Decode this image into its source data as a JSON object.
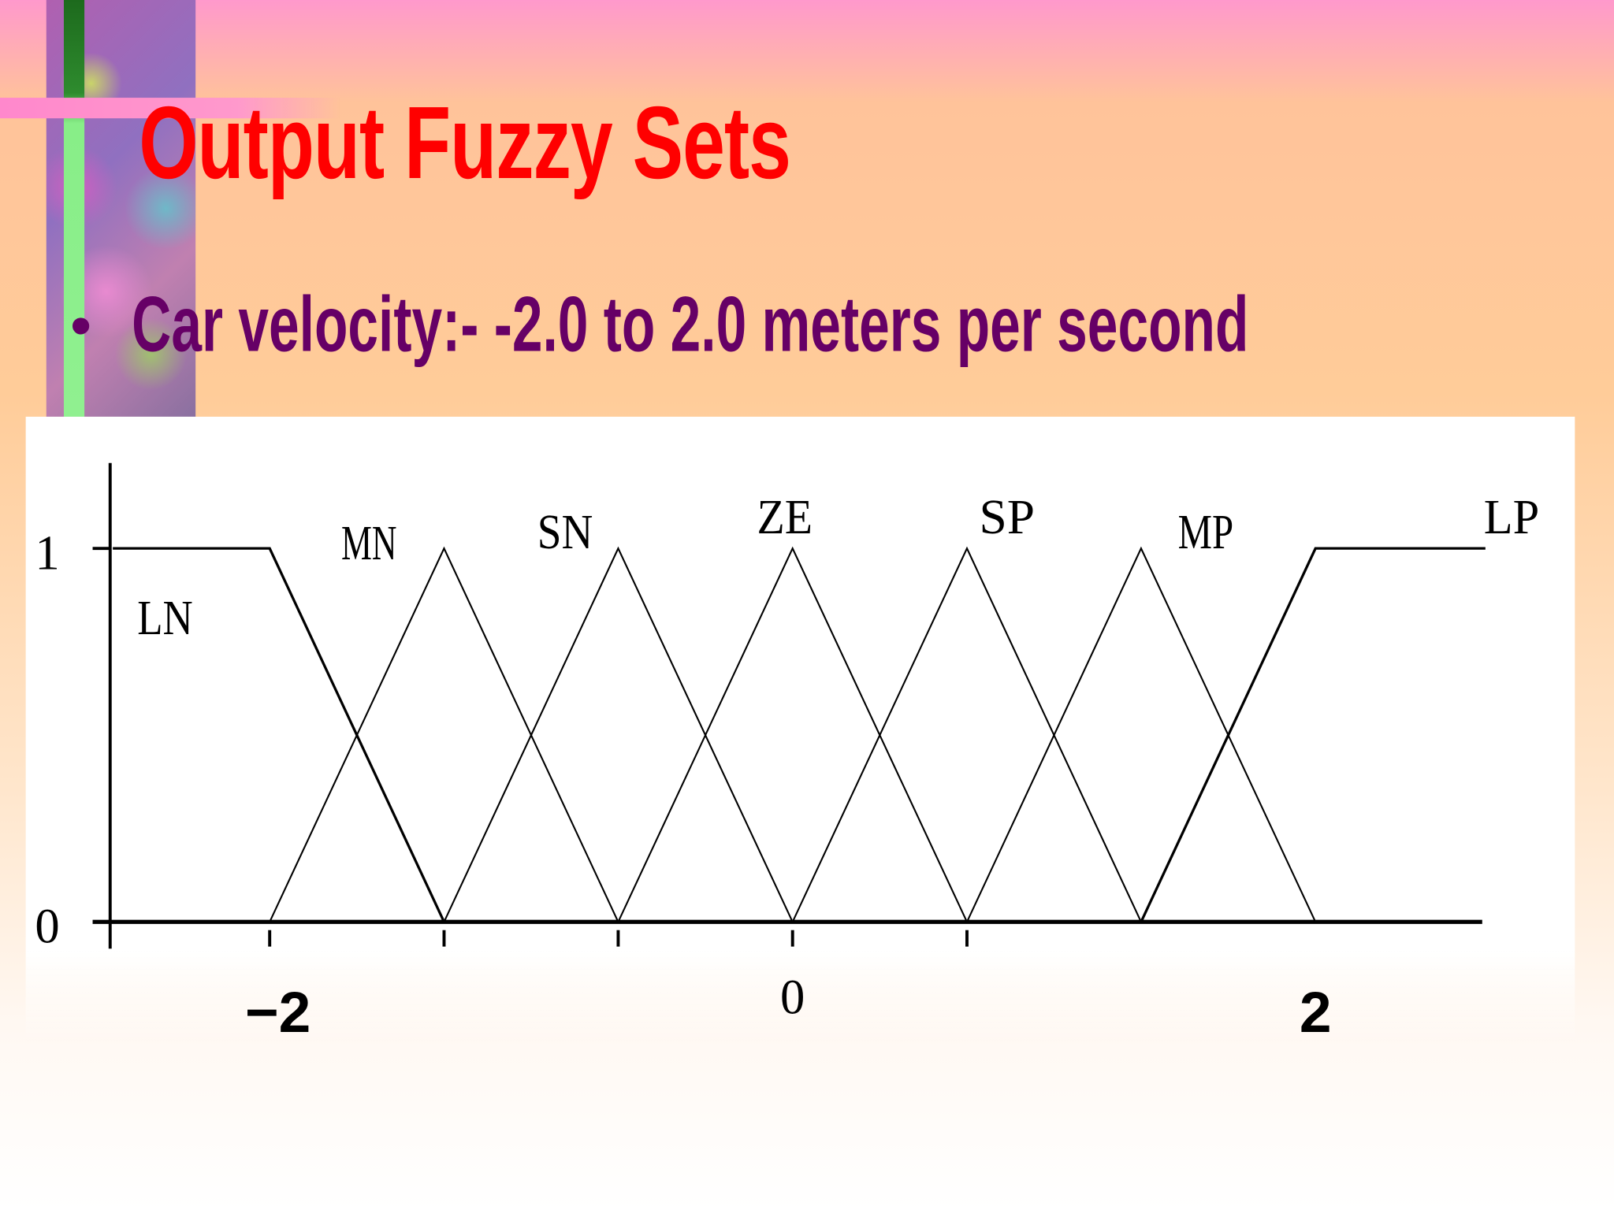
{
  "slide": {
    "title": "Output Fuzzy Sets",
    "bullet": "Car velocity:- -2.0 to 2.0 meters per second",
    "title_color": "#ff0000",
    "text_color": "#660066"
  },
  "chart_data": {
    "type": "line",
    "xlim": [
      -2.6,
      2.65
    ],
    "ylim": [
      0,
      1
    ],
    "y_ticks": [
      "0",
      "1"
    ],
    "x_ticks": [
      -2,
      -1.333,
      -0.667,
      0,
      0.667
    ],
    "x_tick_labels": [
      {
        "value": -2,
        "label": "-2"
      },
      {
        "value": 0,
        "label": "0"
      },
      {
        "value": 2,
        "label": "2"
      }
    ],
    "grid": false,
    "series": [
      {
        "name": "LN",
        "points": [
          [
            -2.6,
            1
          ],
          [
            -2,
            1
          ],
          [
            -1.333,
            0
          ]
        ],
        "label_at": [
          -2.4,
          0.82
        ]
      },
      {
        "name": "MN",
        "points": [
          [
            -2,
            0
          ],
          [
            -1.333,
            1
          ],
          [
            -0.667,
            0
          ]
        ],
        "label_at": [
          -1.62,
          1.02
        ]
      },
      {
        "name": "SN",
        "points": [
          [
            -1.333,
            0
          ],
          [
            -0.667,
            1
          ],
          [
            0,
            0
          ]
        ],
        "label_at": [
          -0.87,
          1.05
        ]
      },
      {
        "name": "ZE",
        "points": [
          [
            -0.667,
            0
          ],
          [
            0,
            1
          ],
          [
            0.667,
            0
          ]
        ],
        "label_at": [
          -0.03,
          1.09
        ]
      },
      {
        "name": "SP",
        "points": [
          [
            0,
            0
          ],
          [
            0.667,
            1
          ],
          [
            1.333,
            0
          ]
        ],
        "label_at": [
          0.82,
          1.09
        ]
      },
      {
        "name": "MP",
        "points": [
          [
            0.667,
            0
          ],
          [
            1.333,
            1
          ],
          [
            2,
            0
          ]
        ],
        "label_at": [
          1.58,
          1.05
        ]
      },
      {
        "name": "LP",
        "points": [
          [
            1.333,
            0
          ],
          [
            2,
            1
          ],
          [
            2.65,
            1
          ]
        ],
        "label_at": [
          2.75,
          1.09
        ]
      }
    ]
  }
}
